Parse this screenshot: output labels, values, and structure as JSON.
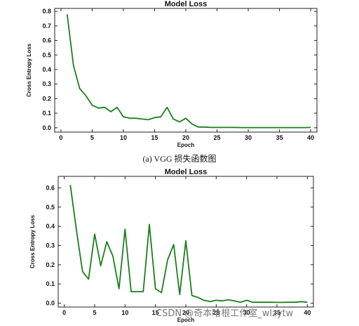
{
  "caption_top": "(a) VGG 损失函数图",
  "watermark": "CSDN @奇本哈根工作室_wlzytw",
  "colors": {
    "line": "#1a7f1a"
  },
  "chart_data": [
    {
      "type": "line",
      "title": "Model Loss",
      "xlabel": "Epoch",
      "ylabel": "Cross Entropy Loss",
      "xlim": [
        -1,
        41
      ],
      "ylim": [
        -0.03,
        0.82
      ],
      "xticks": [
        0,
        5,
        10,
        15,
        20,
        25,
        30,
        35,
        40
      ],
      "yticks": [
        0.0,
        0.1,
        0.2,
        0.3,
        0.4,
        0.5,
        0.6,
        0.7,
        0.8
      ],
      "ytick_labels": [
        "0.0",
        "0.1",
        "0.2",
        "0.3",
        "0.4",
        "0.5",
        "0.6",
        "0.7",
        "0.8"
      ],
      "grid": false,
      "series": [
        {
          "x": [
            1,
            2,
            3,
            4,
            5,
            6,
            7,
            8,
            9,
            10,
            11,
            12,
            13,
            14,
            15,
            16,
            17,
            18,
            19,
            20,
            21,
            22,
            23,
            24,
            25,
            26,
            27,
            28,
            29,
            30,
            31,
            32,
            33,
            34,
            35,
            36,
            37,
            38,
            39,
            40
          ],
          "y": [
            0.78,
            0.43,
            0.27,
            0.22,
            0.155,
            0.135,
            0.14,
            0.11,
            0.14,
            0.075,
            0.065,
            0.065,
            0.06,
            0.055,
            0.07,
            0.075,
            0.14,
            0.06,
            0.04,
            0.065,
            0.025,
            0.005,
            0.005,
            0.002,
            0.002,
            0.002,
            0.002,
            0.002,
            0.001,
            0.001,
            0.001,
            0.001,
            0.001,
            0.001,
            0.001,
            0.001,
            0.001,
            0.001,
            0.001,
            0.002
          ]
        }
      ]
    },
    {
      "type": "line",
      "title": "Model Loss",
      "xlabel": "Epoch",
      "ylabel": "Cross Entropy Loss",
      "xlim": [
        -1,
        41
      ],
      "ylim": [
        -0.02,
        0.66
      ],
      "xticks": [
        0,
        5,
        10,
        15,
        20,
        25,
        30,
        35,
        40
      ],
      "yticks": [
        0.0,
        0.1,
        0.2,
        0.3,
        0.4,
        0.5,
        0.6
      ],
      "ytick_labels": [
        "0.0",
        "0.1",
        "0.2",
        "0.3",
        "0.4",
        "0.5",
        "0.6"
      ],
      "grid": false,
      "series": [
        {
          "x": [
            1,
            2,
            3,
            4,
            5,
            6,
            7,
            8,
            9,
            10,
            11,
            12,
            13,
            14,
            15,
            16,
            17,
            18,
            19,
            20,
            21,
            22,
            23,
            24,
            25,
            26,
            27,
            28,
            29,
            30,
            31,
            32,
            33,
            34,
            35,
            36,
            37,
            38,
            39,
            40
          ],
          "y": [
            0.615,
            0.38,
            0.165,
            0.125,
            0.36,
            0.195,
            0.32,
            0.245,
            0.075,
            0.385,
            0.06,
            0.06,
            0.06,
            0.41,
            0.075,
            0.055,
            0.225,
            0.305,
            0.045,
            0.325,
            0.04,
            0.03,
            0.015,
            0.008,
            0.015,
            0.012,
            0.018,
            0.012,
            0.005,
            0.015,
            0.005,
            0.005,
            0.005,
            0.005,
            0.004,
            0.004,
            0.005,
            0.005,
            0.008,
            0.005
          ]
        }
      ]
    }
  ]
}
